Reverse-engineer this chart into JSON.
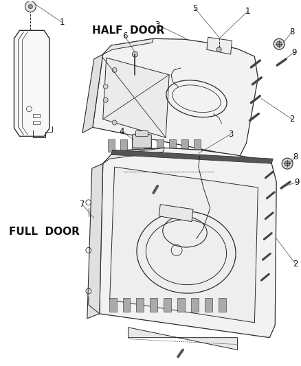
{
  "bg_color": "#ffffff",
  "line_color": "#2a2a2a",
  "half_door_label": "HALF  DOOR",
  "full_door_label": "FULL  DOOR",
  "label_fontsize": 11,
  "number_fontsize": 8.5,
  "figsize": [
    4.38,
    5.33
  ],
  "dpi": 100
}
